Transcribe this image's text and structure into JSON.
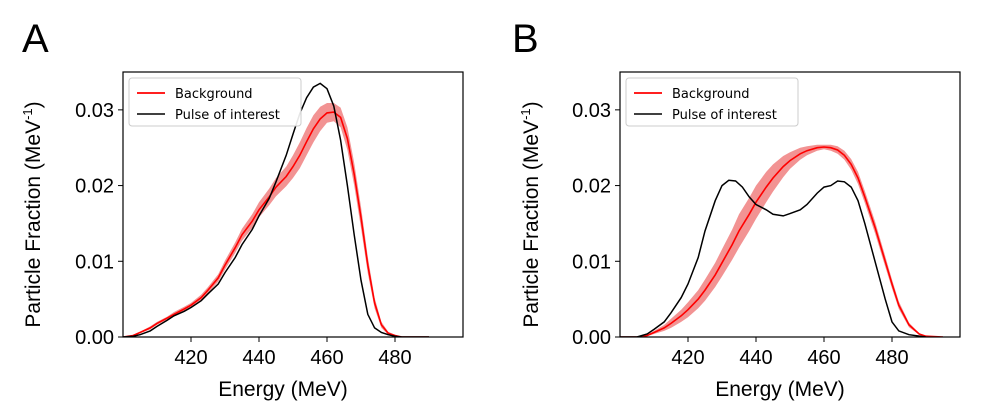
{
  "chart_data": [
    {
      "type": "line",
      "panel": "A",
      "xlabel": "Energy (MeV)",
      "ylabel_main": "Particle Fraction (MeV",
      "ylabel_sup": "-1",
      "ylabel_close": ")",
      "xlim": [
        400,
        500
      ],
      "ylim": [
        0,
        0.035
      ],
      "xticks": [
        420,
        440,
        460,
        480
      ],
      "yticks": [
        0.0,
        0.01,
        0.02,
        0.03
      ],
      "ytick_labels": [
        "0.00",
        "0.01",
        "0.02",
        "0.03"
      ],
      "legend_position": "top-left",
      "series": [
        {
          "name": "Background",
          "color": "#ff0000",
          "band_color": "#f08080",
          "x": [
            400,
            403,
            405,
            408,
            410,
            413,
            415,
            418,
            420,
            423,
            425,
            428,
            430,
            433,
            435,
            438,
            440,
            443,
            445,
            448,
            450,
            452,
            454,
            456,
            458,
            460,
            462,
            464,
            466,
            468,
            470,
            472,
            474,
            476,
            478,
            480,
            482,
            485,
            490
          ],
          "center": [
            0.0,
            0.0002,
            0.0006,
            0.0012,
            0.0018,
            0.0025,
            0.003,
            0.0037,
            0.0042,
            0.0052,
            0.0062,
            0.0078,
            0.0095,
            0.0118,
            0.0135,
            0.0153,
            0.0168,
            0.0185,
            0.0198,
            0.0212,
            0.0225,
            0.024,
            0.0258,
            0.0275,
            0.0288,
            0.0296,
            0.0297,
            0.029,
            0.0262,
            0.0215,
            0.0158,
            0.0095,
            0.0045,
            0.0016,
            0.0005,
            0.0002,
            0.0,
            0.0,
            0.0
          ],
          "width": [
            0.0,
            0.0001,
            0.0001,
            0.0002,
            0.0002,
            0.0002,
            0.0003,
            0.0003,
            0.0003,
            0.0004,
            0.0004,
            0.0005,
            0.0006,
            0.0007,
            0.0008,
            0.0009,
            0.001,
            0.0011,
            0.0012,
            0.0013,
            0.0015,
            0.0017,
            0.0018,
            0.0018,
            0.0016,
            0.0013,
            0.0012,
            0.0013,
            0.0015,
            0.0015,
            0.0014,
            0.0011,
            0.0007,
            0.0004,
            0.0002,
            0.0001,
            0.0,
            0.0,
            0.0
          ]
        },
        {
          "name": "Pulse of interest",
          "color": "#000000",
          "x": [
            400,
            403,
            405,
            408,
            410,
            413,
            415,
            418,
            420,
            423,
            425,
            428,
            430,
            433,
            435,
            438,
            440,
            443,
            445,
            448,
            450,
            452,
            454,
            456,
            458,
            460,
            462,
            464,
            466,
            468,
            470,
            472,
            474,
            476,
            478,
            480,
            482,
            485,
            490
          ],
          "values": [
            0.0,
            0.0001,
            0.0003,
            0.0008,
            0.0014,
            0.0022,
            0.0028,
            0.0034,
            0.0039,
            0.0048,
            0.0057,
            0.007,
            0.0085,
            0.0105,
            0.0122,
            0.0142,
            0.016,
            0.0183,
            0.0205,
            0.024,
            0.0268,
            0.0295,
            0.0316,
            0.033,
            0.0335,
            0.0328,
            0.0305,
            0.026,
            0.02,
            0.0135,
            0.0075,
            0.003,
            0.0012,
            0.0006,
            0.0003,
            0.0001,
            0.0,
            0.0,
            0.0
          ]
        }
      ]
    },
    {
      "type": "line",
      "panel": "B",
      "xlabel": "Energy (MeV)",
      "ylabel_main": "Particle Fraction (MeV",
      "ylabel_sup": "-1",
      "ylabel_close": ")",
      "xlim": [
        400,
        500
      ],
      "ylim": [
        0,
        0.035
      ],
      "xticks": [
        420,
        440,
        460,
        480
      ],
      "yticks": [
        0.0,
        0.01,
        0.02,
        0.03
      ],
      "ytick_labels": [
        "0.00",
        "0.01",
        "0.02",
        "0.03"
      ],
      "legend_position": "top-left",
      "series": [
        {
          "name": "Background",
          "color": "#ff0000",
          "band_color": "#f08080",
          "x": [
            400,
            405,
            408,
            410,
            413,
            415,
            418,
            420,
            423,
            425,
            428,
            430,
            433,
            435,
            438,
            440,
            443,
            445,
            448,
            450,
            453,
            455,
            458,
            460,
            462,
            464,
            466,
            468,
            470,
            472,
            475,
            478,
            480,
            482,
            485,
            488,
            490,
            495
          ],
          "center": [
            0.0,
            0.0,
            0.0002,
            0.0006,
            0.0012,
            0.0018,
            0.0028,
            0.0036,
            0.005,
            0.0062,
            0.0082,
            0.0098,
            0.0122,
            0.014,
            0.0162,
            0.0178,
            0.0198,
            0.021,
            0.0225,
            0.0233,
            0.0242,
            0.0246,
            0.025,
            0.0251,
            0.025,
            0.0247,
            0.024,
            0.0228,
            0.021,
            0.0185,
            0.0145,
            0.01,
            0.007,
            0.0042,
            0.0016,
            0.0004,
            0.0001,
            0.0
          ],
          "width": [
            0.0,
            0.0,
            0.0001,
            0.0002,
            0.0004,
            0.0006,
            0.0008,
            0.001,
            0.0012,
            0.0014,
            0.0016,
            0.0018,
            0.002,
            0.0022,
            0.0022,
            0.0022,
            0.002,
            0.0018,
            0.0014,
            0.0011,
            0.0008,
            0.0006,
            0.0004,
            0.0003,
            0.0004,
            0.0005,
            0.0006,
            0.0007,
            0.0008,
            0.0008,
            0.0008,
            0.0007,
            0.0006,
            0.0005,
            0.0003,
            0.0001,
            0.0,
            0.0
          ]
        },
        {
          "name": "Pulse of interest",
          "color": "#000000",
          "x": [
            400,
            405,
            408,
            410,
            413,
            415,
            418,
            420,
            423,
            425,
            428,
            430,
            432,
            434,
            436,
            438,
            440,
            443,
            445,
            448,
            450,
            453,
            455,
            458,
            460,
            462,
            464,
            466,
            468,
            470,
            472,
            475,
            478,
            480,
            482,
            485,
            490
          ],
          "values": [
            0.0,
            0.0,
            0.0004,
            0.001,
            0.002,
            0.0032,
            0.0052,
            0.007,
            0.0105,
            0.014,
            0.018,
            0.02,
            0.0207,
            0.0206,
            0.0198,
            0.0185,
            0.0175,
            0.0168,
            0.0162,
            0.016,
            0.0163,
            0.0168,
            0.0175,
            0.019,
            0.0198,
            0.02,
            0.0206,
            0.0205,
            0.0198,
            0.018,
            0.015,
            0.01,
            0.005,
            0.002,
            0.0008,
            0.0003,
            0.0
          ]
        }
      ]
    }
  ]
}
